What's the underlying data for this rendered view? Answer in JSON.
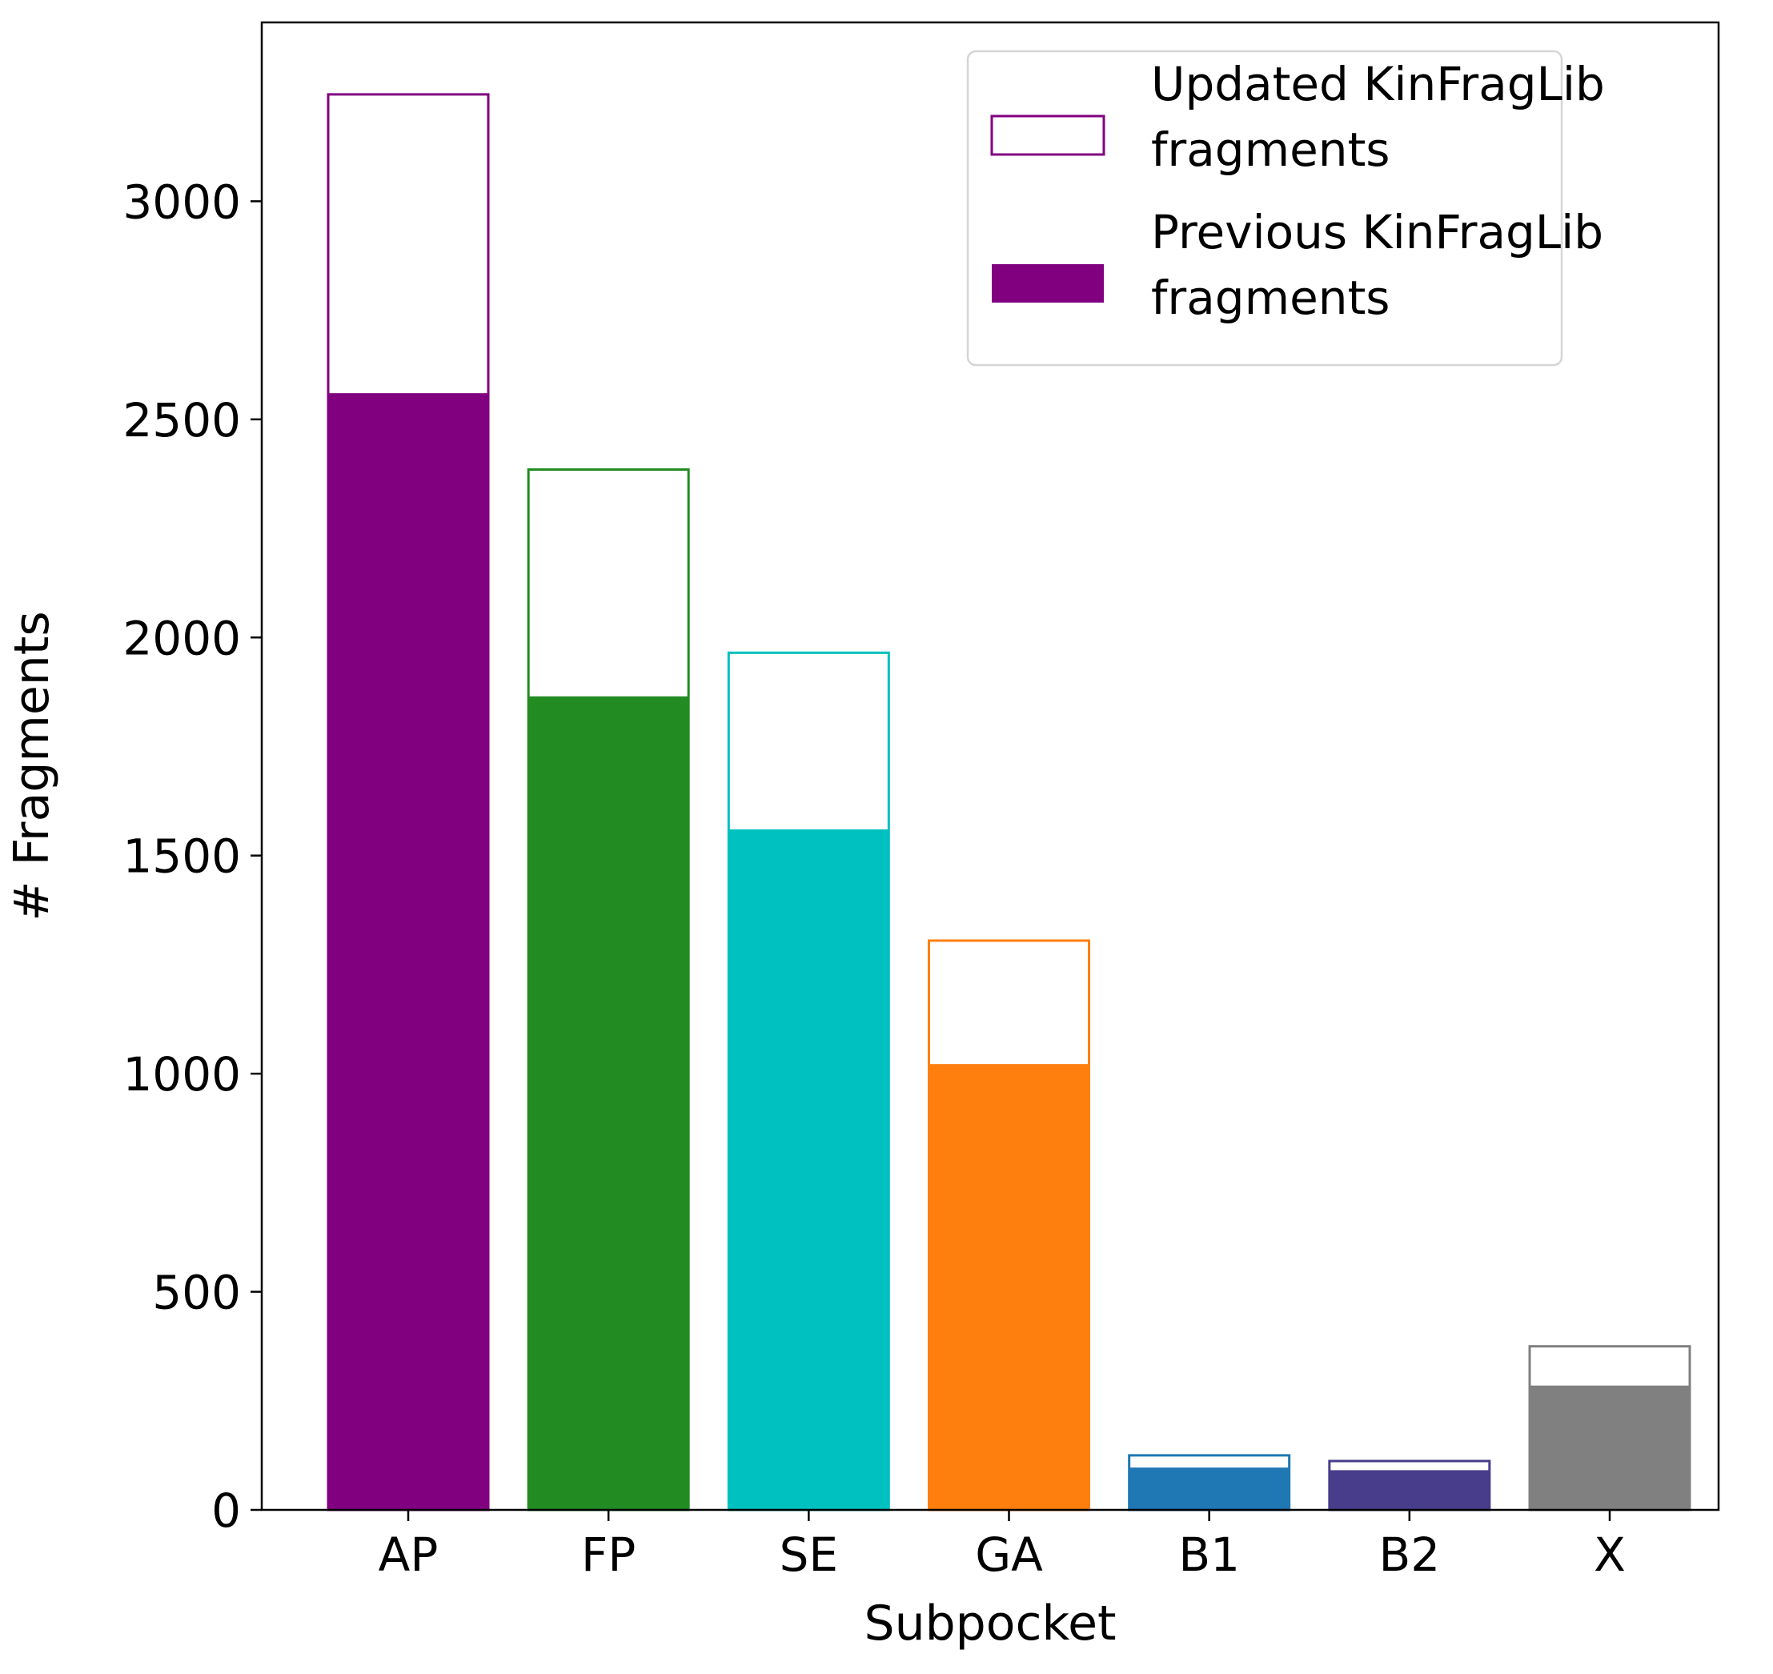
{
  "chart_data": {
    "type": "bar",
    "xlabel": "Subpocket",
    "ylabel": "# Fragments",
    "ylim": [
      0,
      3410
    ],
    "yticks": [
      0,
      500,
      1000,
      1500,
      2000,
      2500,
      3000
    ],
    "categories": [
      "AP",
      "FP",
      "SE",
      "GA",
      "B1",
      "B2",
      "X"
    ],
    "colors": [
      "#800080",
      "#228B22",
      "#00C0C0",
      "#FF7F0E",
      "#1F77B4",
      "#483D8B",
      "#808080"
    ],
    "series": [
      {
        "name": "Updated KinFragLib\nfragments",
        "style": "outline",
        "values": [
          3245,
          2385,
          1965,
          1305,
          125,
          112,
          375
        ]
      },
      {
        "name": "Previous KinFragLib\nfragments",
        "style": "filled",
        "values": [
          2560,
          1865,
          1560,
          1022,
          97,
          91,
          285
        ]
      }
    ],
    "legend": {
      "position": "top-right",
      "entries": [
        {
          "label_lines": [
            "Updated KinFragLib",
            "fragments"
          ],
          "style": "outline",
          "color": "#800080"
        },
        {
          "label_lines": [
            "Previous KinFragLib",
            "fragments"
          ],
          "style": "filled",
          "color": "#800080"
        }
      ]
    },
    "grid": false
  }
}
